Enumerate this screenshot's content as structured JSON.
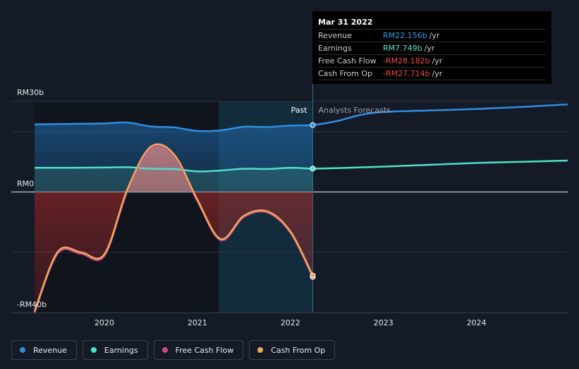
{
  "tooltip": {
    "date": "Mar 31 2022",
    "rows": [
      {
        "label": "Revenue",
        "value": "RM22.156b",
        "unit": "/yr",
        "color": "#3b9ae8"
      },
      {
        "label": "Earnings",
        "value": "RM7.749b",
        "unit": "/yr",
        "color": "#5ee8d3"
      },
      {
        "label": "Free Cash Flow",
        "value": "-RM28.182b",
        "unit": "/yr",
        "color": "#f04a4a"
      },
      {
        "label": "Cash From Op",
        "value": "-RM27.714b",
        "unit": "/yr",
        "color": "#f04a4a"
      }
    ]
  },
  "legend": [
    {
      "label": "Revenue",
      "color": "#2d8fe0"
    },
    {
      "label": "Earnings",
      "color": "#4fe0cc"
    },
    {
      "label": "Free Cash Flow",
      "color": "#c94a8f"
    },
    {
      "label": "Cash From Op",
      "color": "#f0a85a"
    }
  ],
  "regions": {
    "past": "Past",
    "forecast": "Analysts Forecasts"
  },
  "chart_data": {
    "type": "line",
    "y_unit": "RM billions",
    "ylim": [
      -40,
      30
    ],
    "y_tick_labels": [
      {
        "value": 30,
        "label": "RM30b"
      },
      {
        "value": 0,
        "label": "RM0"
      },
      {
        "value": -40,
        "label": "-RM40b"
      }
    ],
    "x_ticks": [
      "2020",
      "2021",
      "2022",
      "2023",
      "2024"
    ],
    "xlim": [
      2019.0,
      2024.98
    ],
    "forecast_start": 2022.24,
    "series": [
      {
        "name": "Revenue",
        "color": "#2d8fe0",
        "points": [
          [
            2019.25,
            22.4
          ],
          [
            2019.5,
            22.5
          ],
          [
            2019.75,
            22.6
          ],
          [
            2020.0,
            22.7
          ],
          [
            2020.25,
            23.0
          ],
          [
            2020.5,
            21.7
          ],
          [
            2020.75,
            21.4
          ],
          [
            2021.0,
            20.2
          ],
          [
            2021.25,
            20.4
          ],
          [
            2021.5,
            21.6
          ],
          [
            2021.75,
            21.5
          ],
          [
            2022.0,
            22.0
          ],
          [
            2022.24,
            22.156
          ],
          [
            2022.5,
            23.5
          ],
          [
            2022.75,
            25.5
          ],
          [
            2023.0,
            26.5
          ],
          [
            2023.5,
            27.0
          ],
          [
            2024.0,
            27.5
          ],
          [
            2024.5,
            28.2
          ],
          [
            2024.98,
            29.0
          ]
        ]
      },
      {
        "name": "Earnings",
        "color": "#4fe0cc",
        "points": [
          [
            2019.25,
            8.0
          ],
          [
            2019.5,
            8.0
          ],
          [
            2019.75,
            8.05
          ],
          [
            2020.0,
            8.1
          ],
          [
            2020.25,
            8.2
          ],
          [
            2020.5,
            7.7
          ],
          [
            2020.75,
            7.6
          ],
          [
            2021.0,
            6.8
          ],
          [
            2021.25,
            7.1
          ],
          [
            2021.5,
            7.7
          ],
          [
            2021.75,
            7.6
          ],
          [
            2022.0,
            8.0
          ],
          [
            2022.24,
            7.749
          ],
          [
            2022.5,
            7.9
          ],
          [
            2023.0,
            8.4
          ],
          [
            2023.5,
            9.0
          ],
          [
            2024.0,
            9.6
          ],
          [
            2024.5,
            10.0
          ],
          [
            2024.98,
            10.4
          ]
        ]
      },
      {
        "name": "Free Cash Flow",
        "color": "#c94a8f",
        "points": [
          [
            2019.25,
            -40.0
          ],
          [
            2019.5,
            -20.3
          ],
          [
            2019.75,
            -20.5
          ],
          [
            2020.0,
            -21.2
          ],
          [
            2020.25,
            0.5
          ],
          [
            2020.5,
            14.6
          ],
          [
            2020.75,
            12.0
          ],
          [
            2021.0,
            -3.0
          ],
          [
            2021.25,
            -16.0
          ],
          [
            2021.5,
            -8.3
          ],
          [
            2021.75,
            -6.8
          ],
          [
            2022.0,
            -13.5
          ],
          [
            2022.24,
            -28.182
          ]
        ]
      },
      {
        "name": "Cash From Op",
        "color": "#f0a85a",
        "points": [
          [
            2019.25,
            -39.5
          ],
          [
            2019.5,
            -19.8
          ],
          [
            2019.75,
            -20.0
          ],
          [
            2020.0,
            -20.7
          ],
          [
            2020.25,
            1.0
          ],
          [
            2020.5,
            15.0
          ],
          [
            2020.75,
            12.4
          ],
          [
            2021.0,
            -2.6
          ],
          [
            2021.25,
            -15.6
          ],
          [
            2021.5,
            -7.9
          ],
          [
            2021.75,
            -6.4
          ],
          [
            2022.0,
            -13.1
          ],
          [
            2022.24,
            -27.714
          ]
        ]
      }
    ]
  }
}
